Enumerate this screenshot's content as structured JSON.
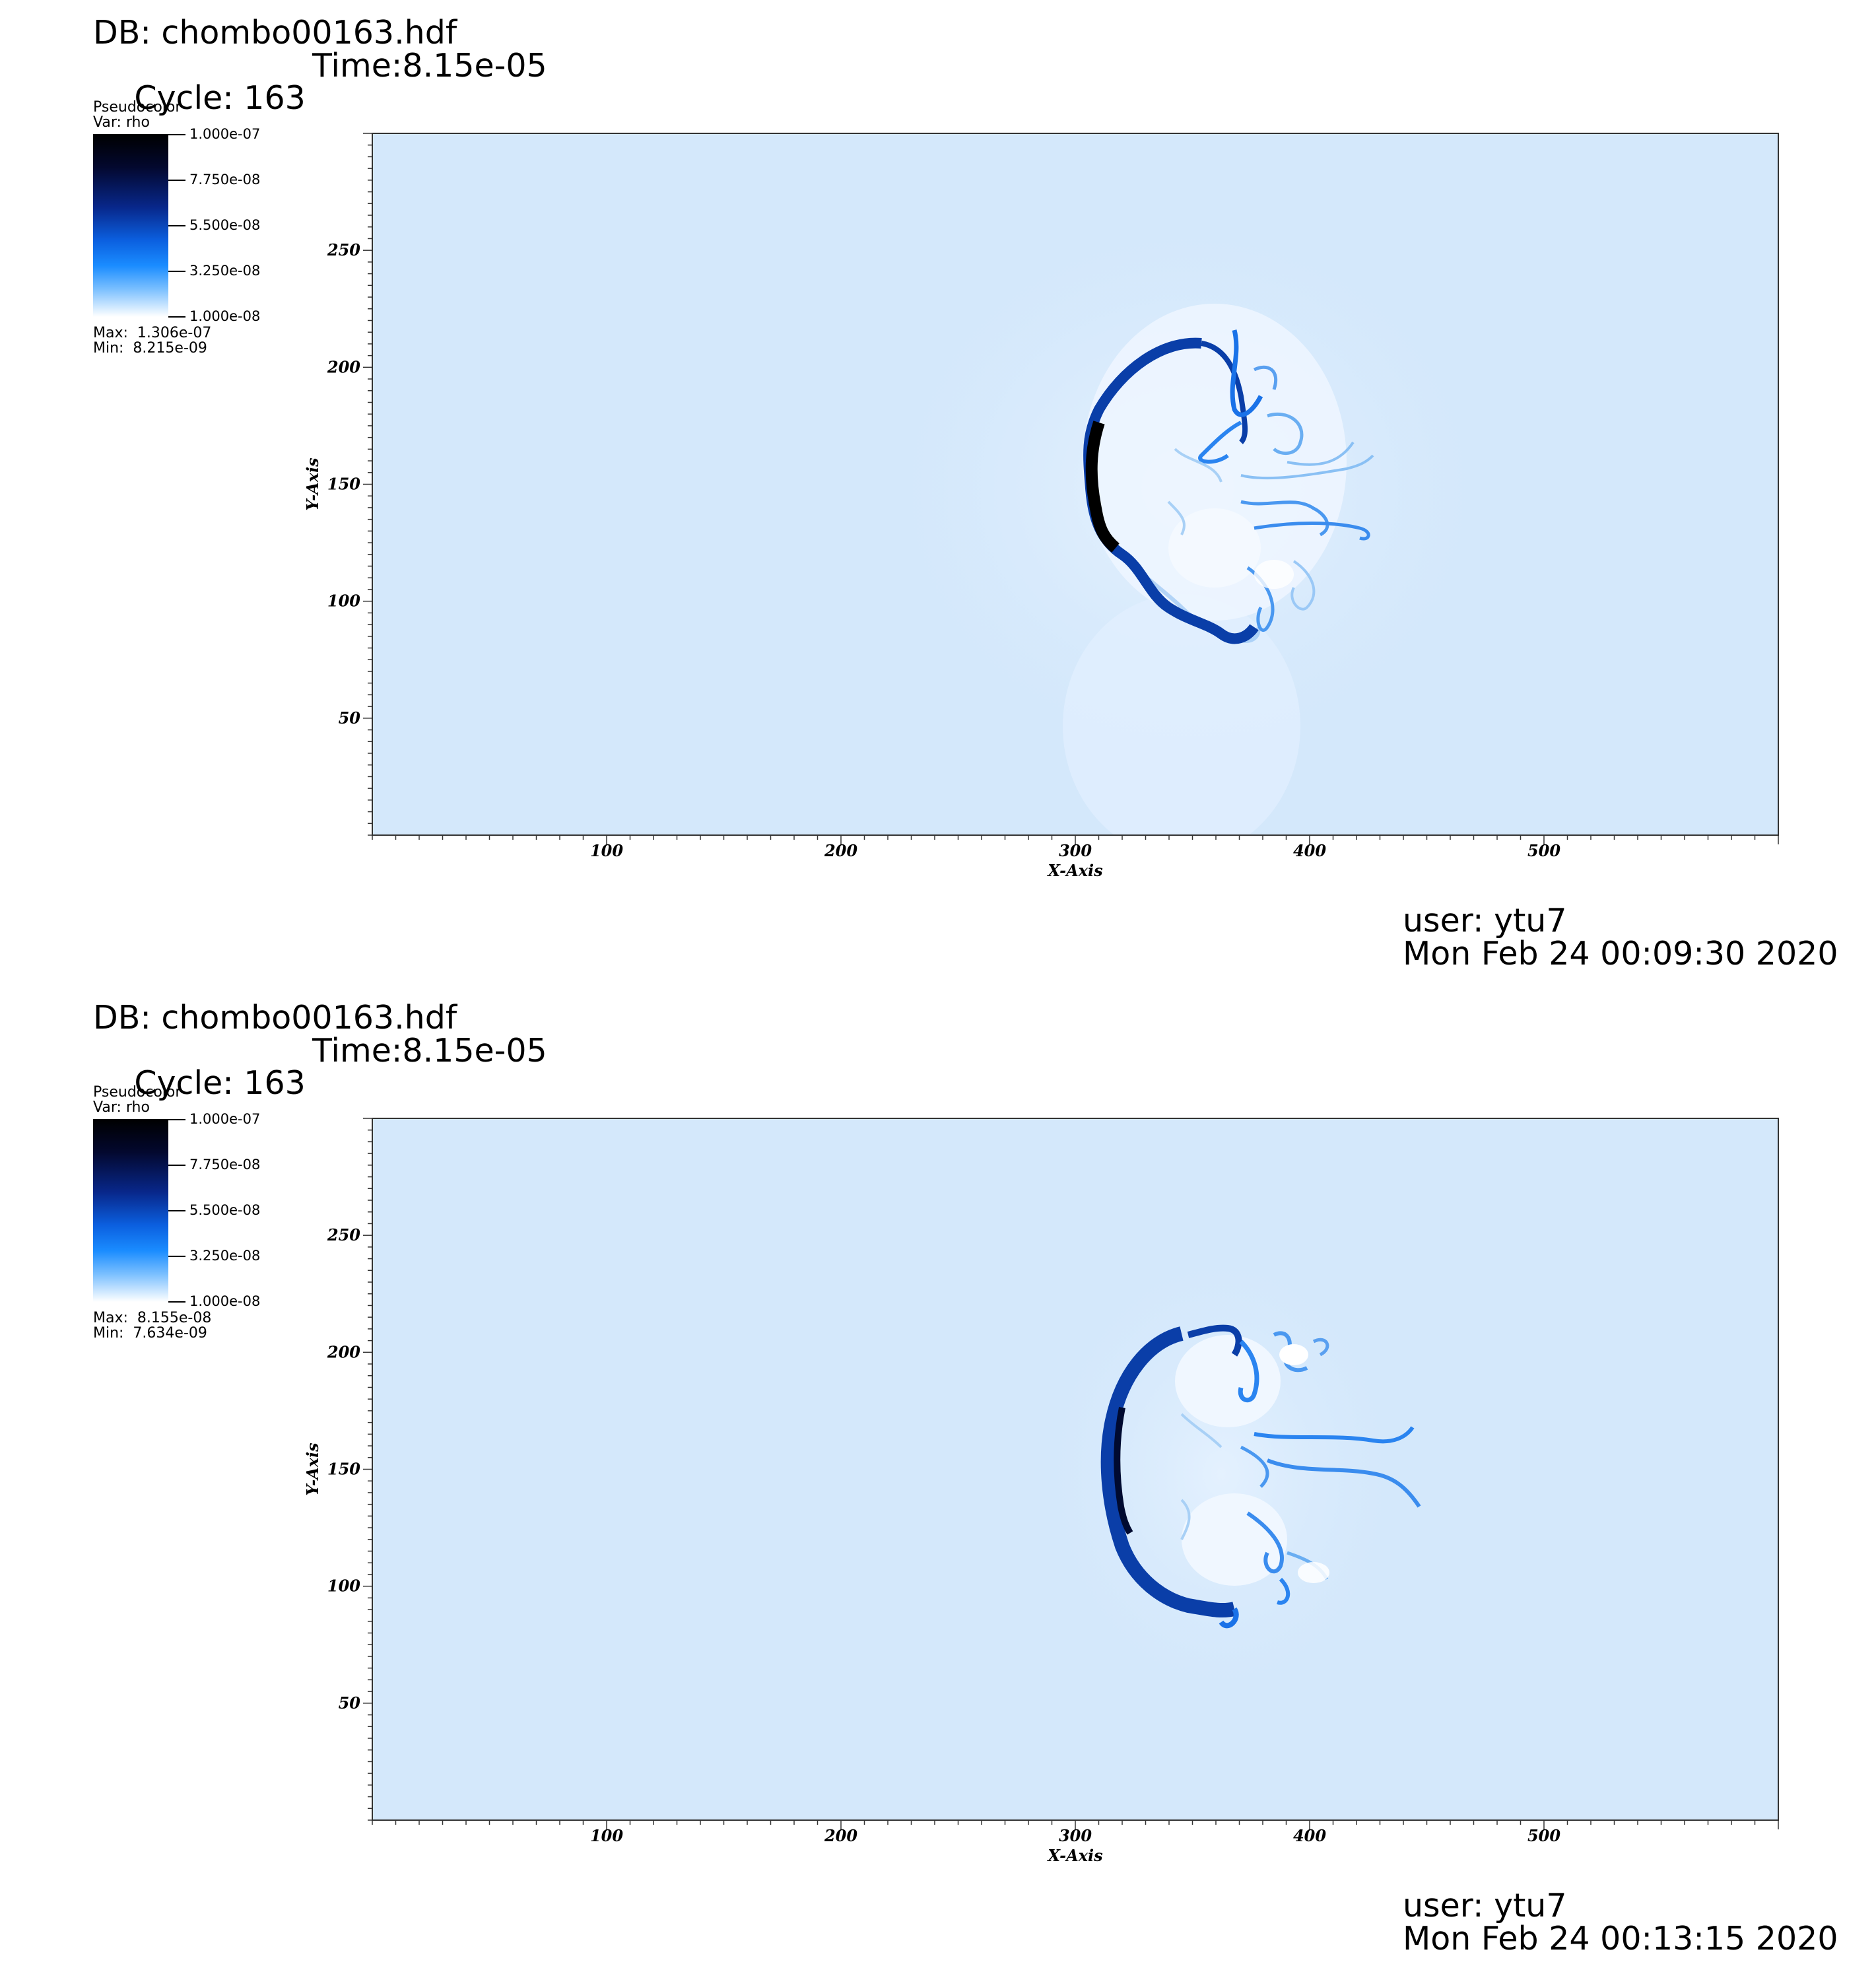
{
  "panels": [
    {
      "db": "DB: chombo00163.hdf",
      "cycle": "Cycle: 163",
      "time": "Time:8.15e-05",
      "legend": {
        "plot_type": "Pseudocolor",
        "var": "Var: rho",
        "ticks": [
          "1.000e-07",
          "7.750e-08",
          "5.500e-08",
          "3.250e-08",
          "1.000e-08"
        ],
        "max": "Max:  1.306e-07",
        "min": "Min:  8.215e-09"
      },
      "user": "user: ytu7",
      "date": "Mon Feb 24 00:09:30 2020"
    },
    {
      "db": "DB: chombo00163.hdf",
      "cycle": "Cycle: 163",
      "time": "Time:8.15e-05",
      "legend": {
        "plot_type": "Pseudocolor",
        "var": "Var: rho",
        "ticks": [
          "1.000e-07",
          "7.750e-08",
          "5.500e-08",
          "3.250e-08",
          "1.000e-08"
        ],
        "max": "Max:  8.155e-08",
        "min": "Min:  7.634e-09"
      },
      "user": "user: ytu7",
      "date": "Mon Feb 24 00:13:15 2020"
    }
  ],
  "chart_data": [
    {
      "type": "heatmap",
      "variable": "rho",
      "xlabel": "X-Axis",
      "ylabel": "Y-Axis",
      "xlim": [
        0,
        600
      ],
      "ylim": [
        0,
        300
      ],
      "xticks": [
        100,
        200,
        300,
        400,
        500
      ],
      "yticks": [
        50,
        100,
        150,
        200,
        250
      ],
      "color_range": [
        1e-08,
        1e-07
      ],
      "colors": {
        "background": "#d4e8fb",
        "low": "#ffffff",
        "mid": "#1a8cff",
        "high": "#000000"
      }
    },
    {
      "type": "heatmap",
      "variable": "rho",
      "xlabel": "X-Axis",
      "ylabel": "Y-Axis",
      "xlim": [
        0,
        600
      ],
      "ylim": [
        0,
        300
      ],
      "xticks": [
        100,
        200,
        300,
        400,
        500
      ],
      "yticks": [
        50,
        100,
        150,
        200,
        250
      ],
      "color_range": [
        1e-08,
        1e-07
      ],
      "colors": {
        "background": "#d4e8fb",
        "low": "#ffffff",
        "mid": "#1a8cff",
        "high": "#000000"
      }
    }
  ]
}
